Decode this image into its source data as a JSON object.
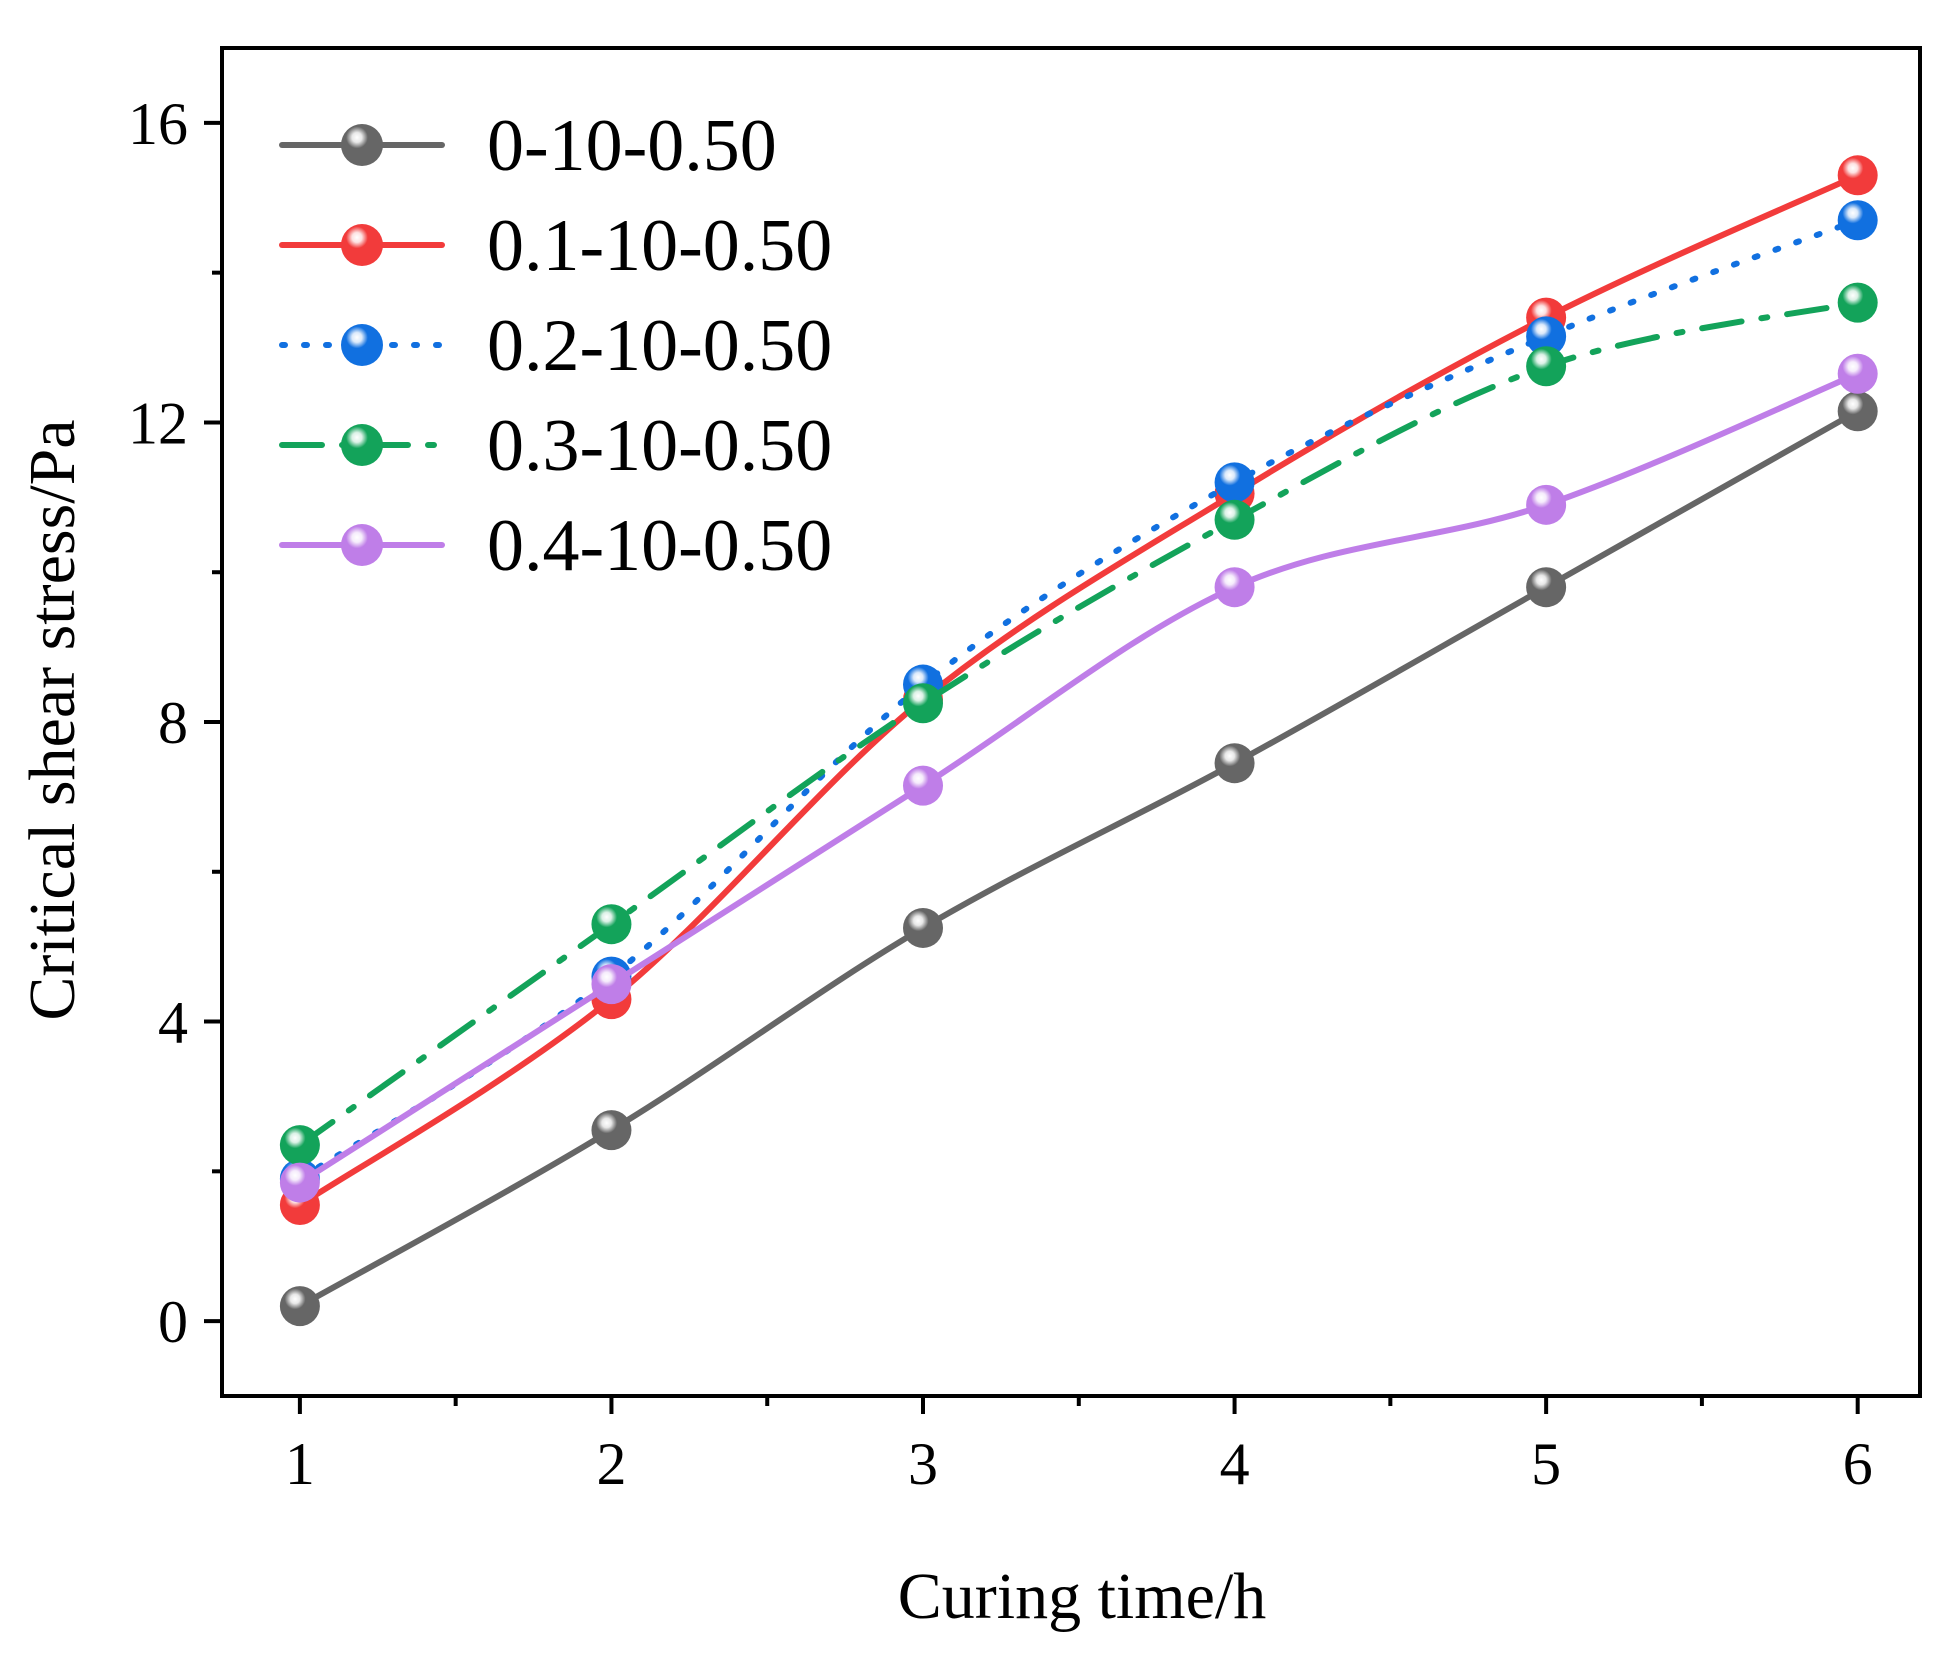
{
  "chart_data": {
    "type": "line",
    "title": "",
    "xlabel": "Curing time/h",
    "ylabel": "Critical shear stress/Pa",
    "x": [
      1,
      2,
      3,
      4,
      5,
      6
    ],
    "xlim": [
      0.75,
      6.2
    ],
    "ylim": [
      -1,
      17
    ],
    "xticks": [
      1,
      2,
      3,
      4,
      5,
      6
    ],
    "yticks": [
      0,
      4,
      8,
      12,
      16
    ],
    "xtick_labels": [
      "1",
      "2",
      "3",
      "4",
      "5",
      "6"
    ],
    "ytick_labels": [
      "0",
      "4",
      "8",
      "12",
      "16"
    ],
    "legend_position": "top-left",
    "series": [
      {
        "name": "0-10-0.50",
        "color": "#666666",
        "style": "solid",
        "values": [
          0.2,
          2.55,
          5.25,
          7.45,
          9.8,
          12.15
        ]
      },
      {
        "name": "0.1-10-0.50",
        "color": "#f23b3b",
        "style": "solid",
        "values": [
          1.55,
          4.3,
          8.3,
          11.05,
          13.4,
          15.3
        ]
      },
      {
        "name": "0.2-10-0.50",
        "color": "#1170e0",
        "style": "dot",
        "values": [
          1.9,
          4.6,
          8.5,
          11.2,
          13.15,
          14.7
        ]
      },
      {
        "name": "0.3-10-0.50",
        "color": "#13a35a",
        "style": "dashdot",
        "values": [
          2.35,
          5.3,
          8.25,
          10.7,
          12.75,
          13.6
        ]
      },
      {
        "name": "0.4-10-0.50",
        "color": "#bf7ee8",
        "style": "solid",
        "values": [
          1.85,
          4.5,
          7.15,
          9.8,
          10.9,
          12.65
        ]
      }
    ]
  }
}
